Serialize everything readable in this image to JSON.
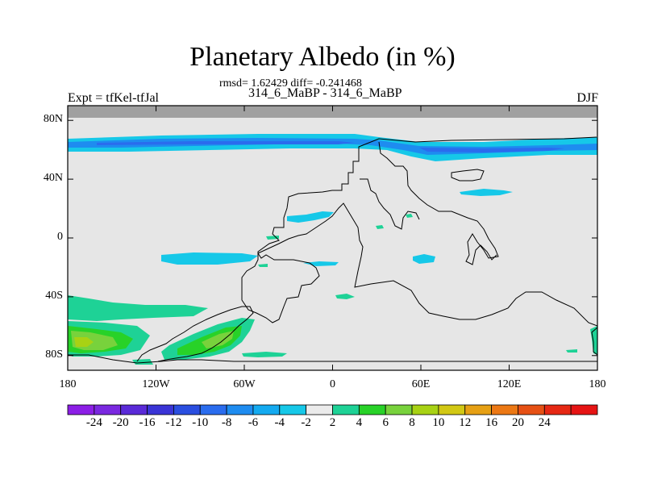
{
  "figure": {
    "title": "Planetary Albedo (in %)",
    "stats": "rmsd= 1.62429 diff= -0.241468",
    "expt_pair": "314_6_MaBP - 314_6_MaBP",
    "left_label": "Expt = tfKel-tfJal",
    "right_label": "DJF"
  },
  "map": {
    "lon_range": [
      -180,
      180
    ],
    "lat_range": [
      -90,
      90
    ],
    "lon_ticks": [
      {
        "value": -180,
        "label": "180"
      },
      {
        "value": -120,
        "label": "120W"
      },
      {
        "value": -60,
        "label": "60W"
      },
      {
        "value": 0,
        "label": "0"
      },
      {
        "value": 60,
        "label": "60E"
      },
      {
        "value": 120,
        "label": "120E"
      },
      {
        "value": 180,
        "label": "180"
      }
    ],
    "lat_ticks": [
      {
        "value": 80,
        "label": "80N"
      },
      {
        "value": 40,
        "label": "40N"
      },
      {
        "value": 0,
        "label": "0"
      },
      {
        "value": -40,
        "label": "40S"
      },
      {
        "value": -80,
        "label": "80S"
      }
    ],
    "background_color": "#e6e6e6",
    "missing_color": "#a0a0a0",
    "missing_band_lat": [
      82,
      90
    ]
  },
  "colorbar": {
    "colors": [
      "#8c1ee6",
      "#7a28e0",
      "#5a2ad8",
      "#3a34d6",
      "#2a4ee0",
      "#2a6cee",
      "#1e8cf0",
      "#14aaf0",
      "#16c8e8",
      "#ebebeb",
      "#1ed296",
      "#28d228",
      "#78d23c",
      "#a8d214",
      "#d2c814",
      "#e6a014",
      "#ec7814",
      "#e65014",
      "#e62814",
      "#e61414"
    ],
    "labels": [
      "-24",
      "-20",
      "-16",
      "-12",
      "-10",
      "-8",
      "-6",
      "-4",
      "-2",
      "2",
      "4",
      "6",
      "8",
      "10",
      "12",
      "16",
      "20",
      "24"
    ]
  }
}
